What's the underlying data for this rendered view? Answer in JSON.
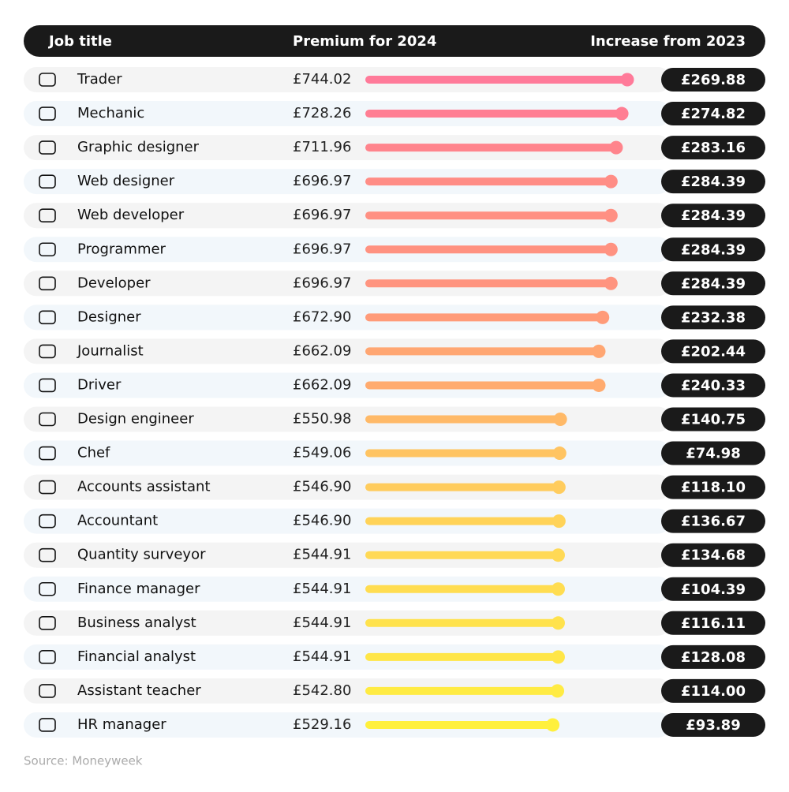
{
  "chart_data": {
    "type": "bar",
    "orientation": "horizontal",
    "category_label": "Job title",
    "categories": [
      "Trader",
      "Mechanic",
      "Graphic designer",
      "Web designer",
      "Web developer",
      "Programmer",
      "Developer",
      "Designer",
      "Journalist",
      "Driver",
      "Design engineer",
      "Chef",
      "Accounts assistant",
      "Accountant",
      "Quantity surveyor",
      "Finance manager",
      "Business analyst",
      "Financial analyst",
      "Assistant teacher",
      "HR manager"
    ],
    "series": [
      {
        "name": "Premium for 2024",
        "values": [
          744.02,
          728.26,
          711.96,
          696.97,
          696.97,
          696.97,
          696.97,
          672.9,
          662.09,
          662.09,
          550.98,
          549.06,
          546.9,
          546.9,
          544.91,
          544.91,
          544.91,
          544.91,
          542.8,
          529.16
        ],
        "value_labels": [
          "£744.02",
          "£728.26",
          "£711.96",
          "£696.97",
          "£696.97",
          "£696.97",
          "£696.97",
          "£672.90",
          "£662.09",
          "£662.09",
          "£550.98",
          "£549.06",
          "£546.90",
          "£546.90",
          "£544.91",
          "£544.91",
          "£544.91",
          "£544.91",
          "£542.80",
          "£529.16"
        ]
      },
      {
        "name": "Increase from 2023",
        "values": [
          269.88,
          274.82,
          283.16,
          284.39,
          284.39,
          284.39,
          284.39,
          232.38,
          202.44,
          240.33,
          140.75,
          74.98,
          118.1,
          136.67,
          134.68,
          104.39,
          116.11,
          128.08,
          114.0,
          93.89
        ],
        "value_labels": [
          "£269.88",
          "£274.82",
          "£283.16",
          "£284.39",
          "£284.39",
          "£284.39",
          "£284.39",
          "£232.38",
          "£202.44",
          "£240.33",
          "£140.75",
          "£74.98",
          "£118.10",
          "£136.67",
          "£134.68",
          "£104.39",
          "£116.11",
          "£128.08",
          "£114.00",
          "£93.89"
        ]
      }
    ],
    "colors": [
      "#ff7a99",
      "#ff7e93",
      "#ff848c",
      "#ff8d86",
      "#ff9083",
      "#ff9281",
      "#ff947f",
      "#ff9b79",
      "#ffa672",
      "#ffab6f",
      "#ffb967",
      "#ffc462",
      "#ffcc5d",
      "#ffd359",
      "#ffd955",
      "#ffdd51",
      "#ffe24c",
      "#ffe648",
      "#ffeb43",
      "#fff03d"
    ],
    "source": "Source: Moneyweek"
  }
}
